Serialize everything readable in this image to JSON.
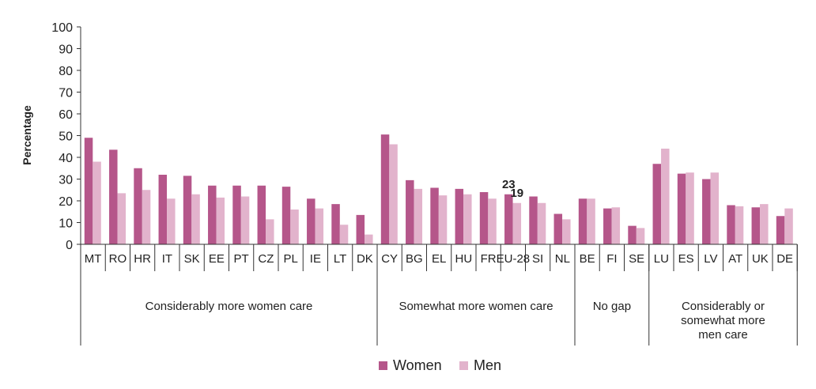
{
  "chart_data": {
    "type": "bar",
    "ylabel": "Percentage",
    "ylim": [
      0,
      100
    ],
    "yticks": [
      "0",
      "10",
      "20",
      "30",
      "40",
      "50",
      "60",
      "70",
      "80",
      "90",
      "100"
    ],
    "grid": false,
    "legend_position": "bottom-center",
    "categories": [
      "MT",
      "RO",
      "HR",
      "IT",
      "SK",
      "EE",
      "PT",
      "CZ",
      "PL",
      "IE",
      "LT",
      "DK",
      "CY",
      "BG",
      "EL",
      "HU",
      "FR",
      "EU-28",
      "SI",
      "NL",
      "BE",
      "FI",
      "SE",
      "LU",
      "ES",
      "LV",
      "AT",
      "UK",
      "DE"
    ],
    "series": [
      {
        "name": "Women",
        "color": "#b5568a",
        "values": [
          49,
          43.5,
          35,
          32,
          31.5,
          27,
          27,
          27,
          26.5,
          21,
          18.5,
          13.5,
          50.5,
          29.5,
          26,
          25.5,
          24,
          23,
          22,
          14,
          21,
          16.5,
          8.5,
          37,
          32.5,
          30,
          18,
          17,
          13
        ]
      },
      {
        "name": "Men",
        "color": "#e2b3cc",
        "values": [
          38,
          23.5,
          25,
          21,
          23,
          21.5,
          22,
          11.5,
          16,
          16.5,
          9,
          4.5,
          46,
          25.5,
          22.5,
          23,
          21,
          19,
          19,
          11.5,
          21,
          17,
          7.5,
          44,
          33,
          33,
          17.5,
          18.5,
          16.5
        ]
      }
    ],
    "groups": [
      {
        "label": [
          "Considerably more women care"
        ],
        "count": 12
      },
      {
        "label": [
          "Somewhat more women care"
        ],
        "count": 8
      },
      {
        "label": [
          "No gap"
        ],
        "count": 3
      },
      {
        "label": [
          "Considerably or",
          "somewhat more",
          "men care"
        ],
        "count": 6
      }
    ],
    "annotations": [
      {
        "category": "EU-28",
        "series": "Women",
        "text": "23"
      },
      {
        "category": "EU-28",
        "series": "Men",
        "text": "19"
      }
    ]
  }
}
